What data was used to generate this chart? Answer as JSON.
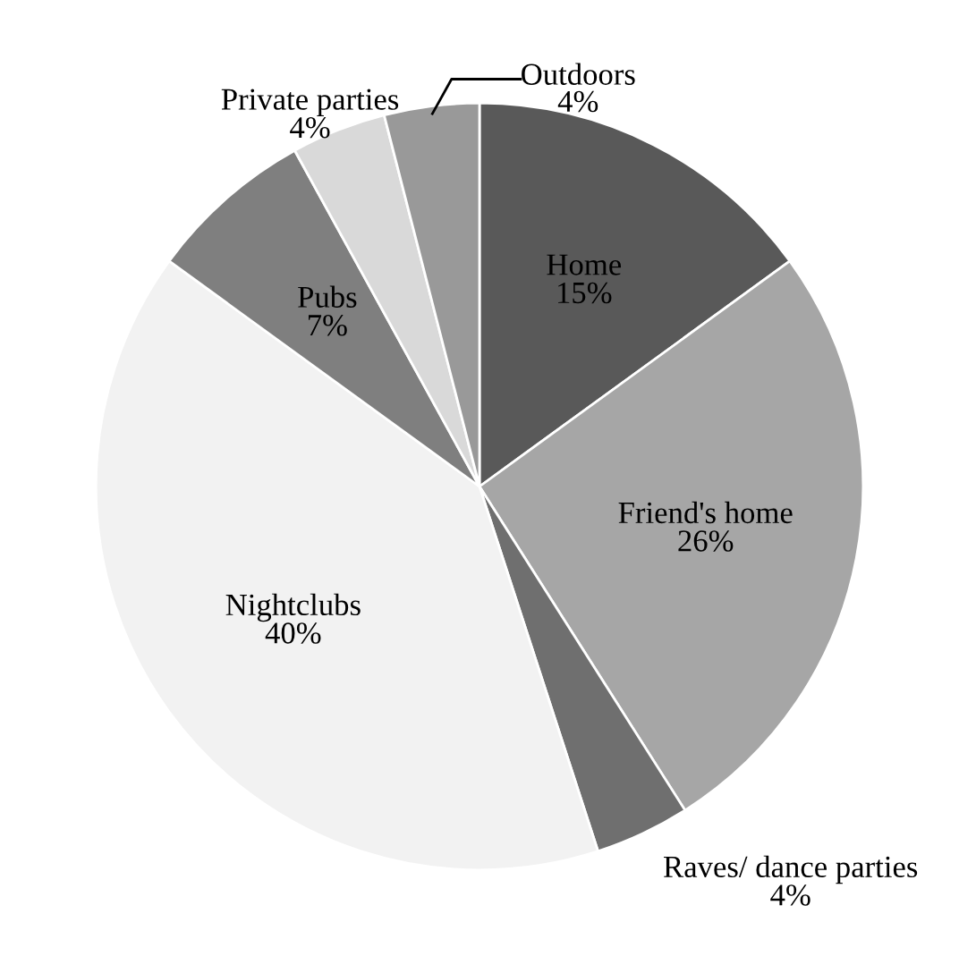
{
  "chart_data": {
    "type": "pie",
    "categories": [
      "Home",
      "Friend's home",
      "Raves/ dance parties",
      "Nightclubs",
      "Pubs",
      "Private parties",
      "Outdoors"
    ],
    "values": [
      15,
      26,
      4,
      40,
      7,
      4,
      4
    ],
    "colors": [
      "#595959",
      "#a6a6a6",
      "#6f6f6f",
      "#f2f2f2",
      "#7f7f7f",
      "#d9d9d9",
      "#999999"
    ],
    "value_labels": [
      "15%",
      "26%",
      "4%",
      "40%",
      "7%",
      "4%",
      "4%"
    ],
    "legend": false
  }
}
